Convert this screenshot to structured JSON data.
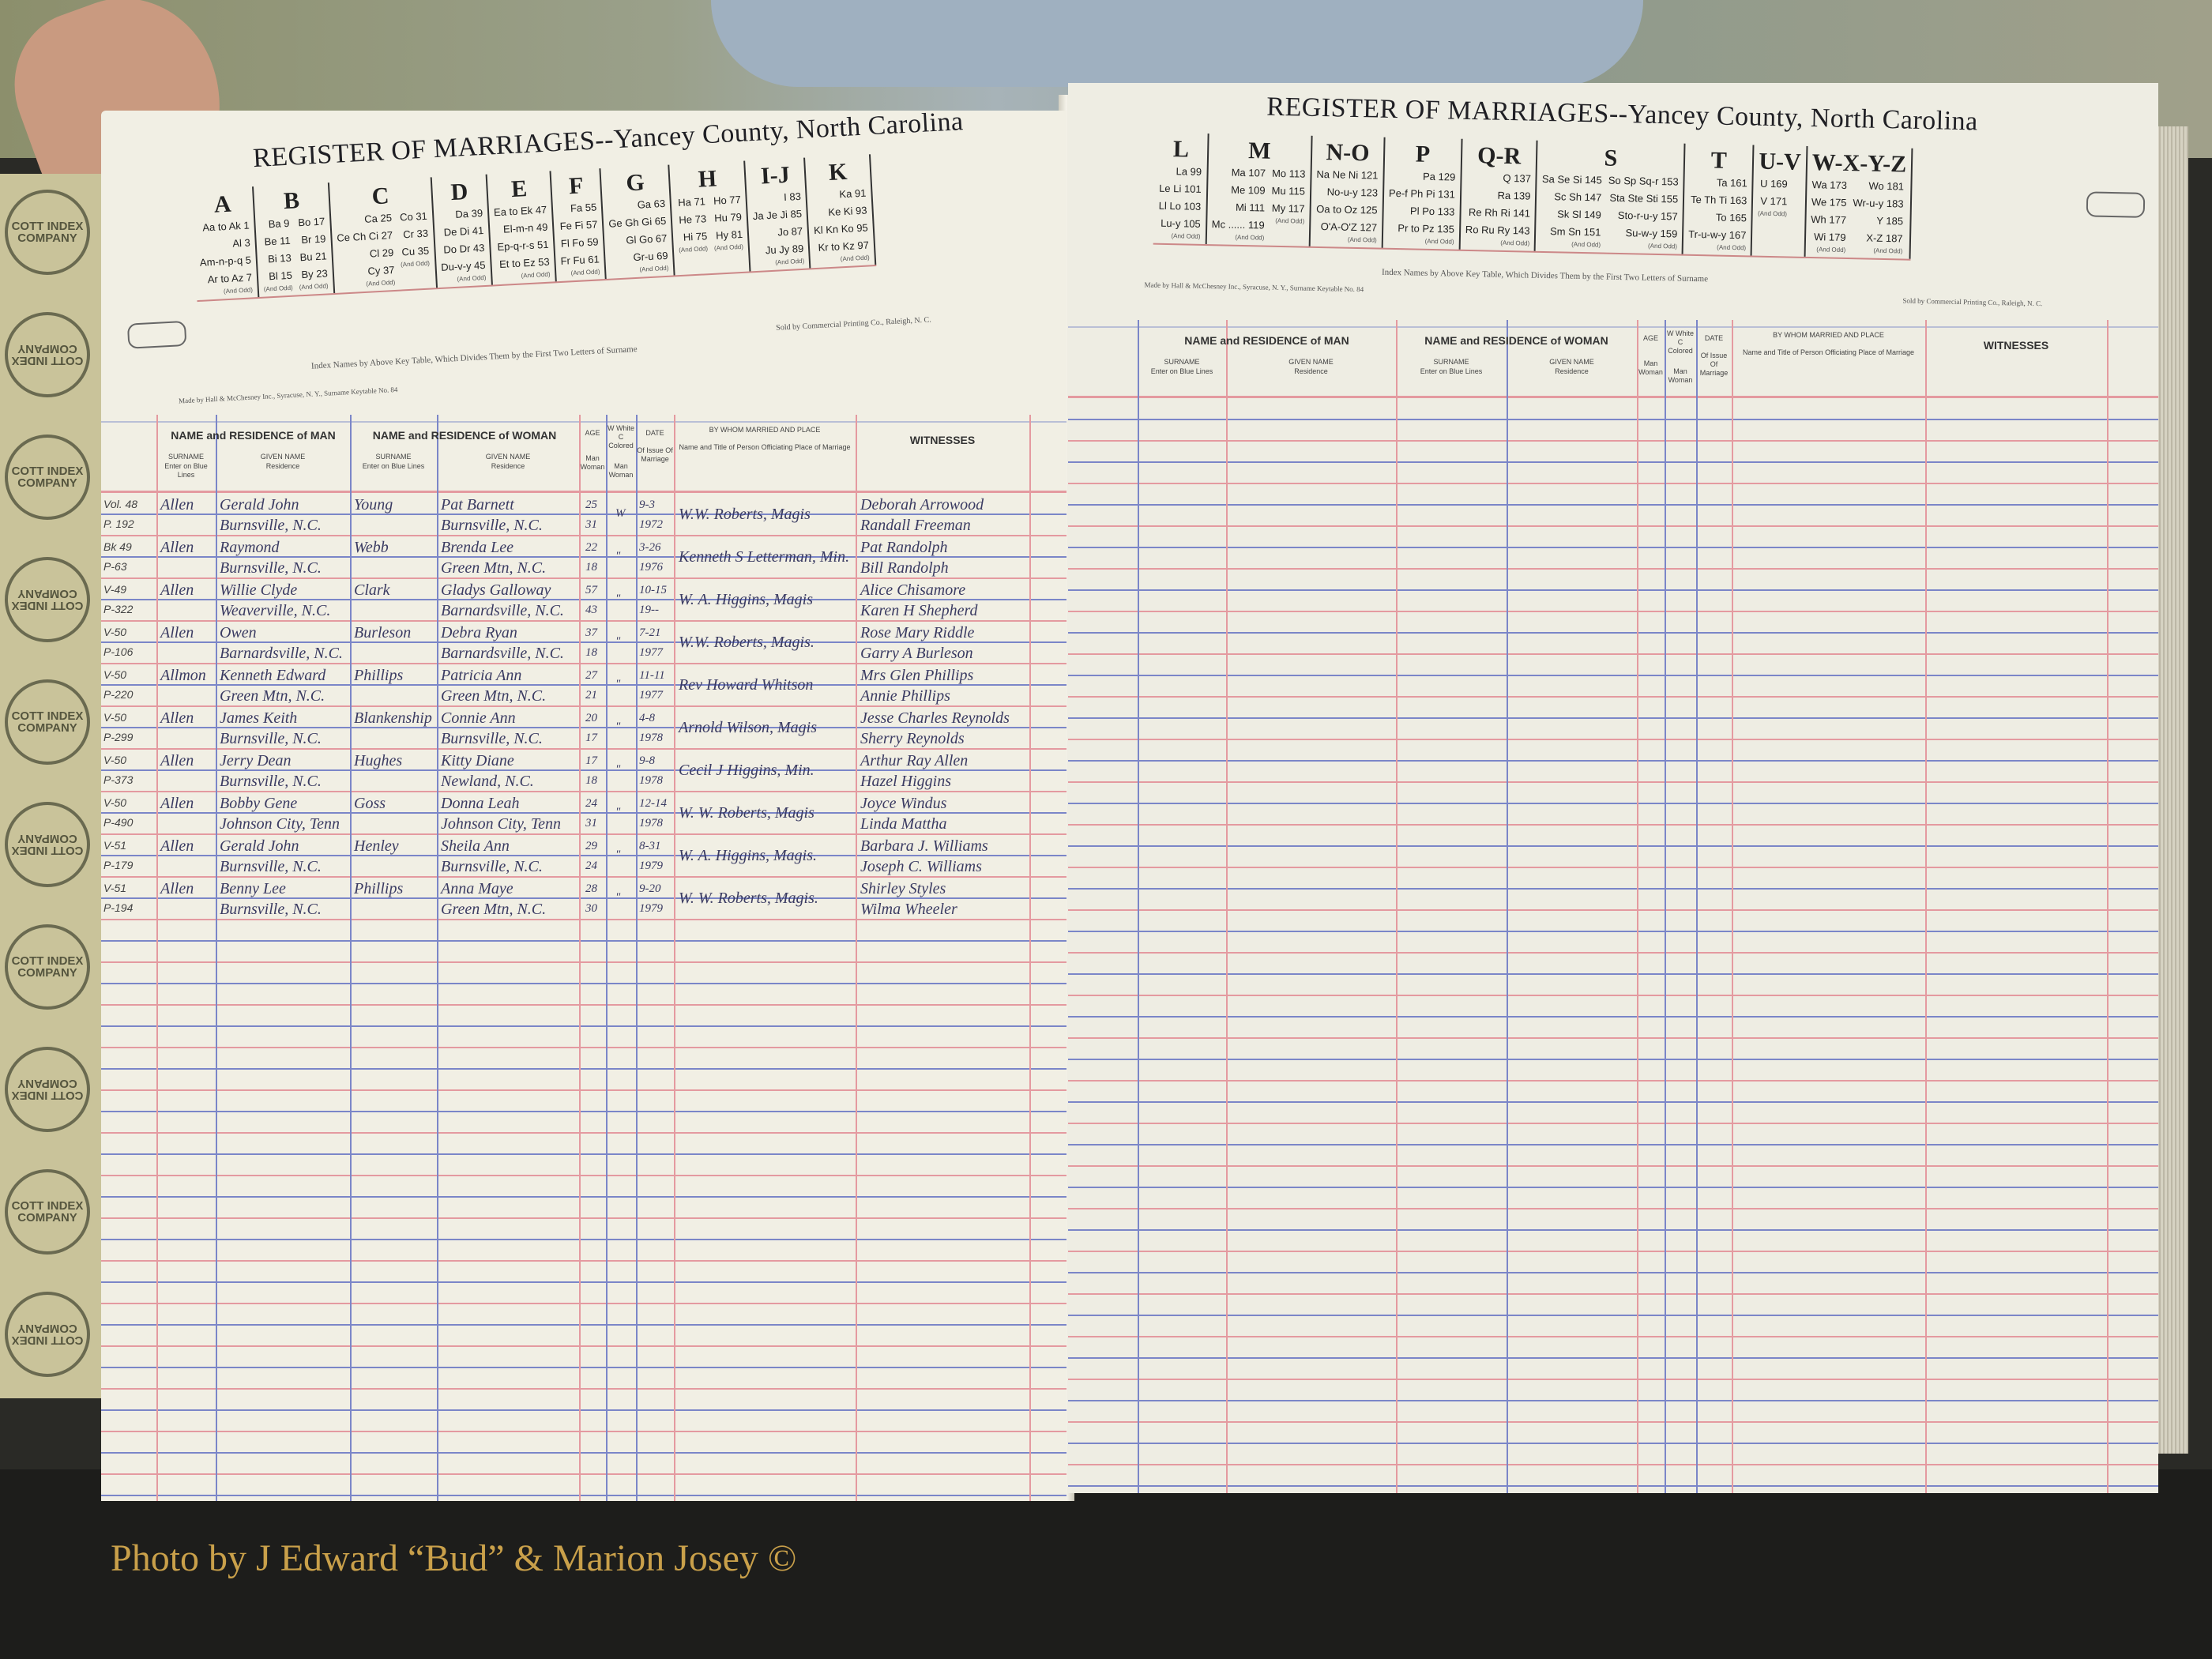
{
  "watermark": "Photo by J Edward “Bud” & Marion Josey ©",
  "seal_text": "COTT INDEX COMPANY",
  "left_page": {
    "title": "REGISTER OF MARRIAGES--Yancey County, North Carolina",
    "key_table": [
      {
        "letter": "A",
        "cols": [
          [
            "Aa to Ak 1",
            "Al 3",
            "Am-n-p-q 5",
            "Ar to Az 7"
          ]
        ]
      },
      {
        "letter": "B",
        "cols": [
          [
            "Ba 9",
            "Be 11",
            "Bi 13",
            "Bl 15"
          ],
          [
            "Bo 17",
            "Br 19",
            "Bu 21",
            "By 23"
          ]
        ]
      },
      {
        "letter": "C",
        "cols": [
          [
            "Ca 25",
            "Ce Ch Ci 27",
            "Cl 29",
            "Cy 37"
          ],
          [
            "Co 31",
            "Cr 33",
            "Cu 35"
          ]
        ]
      },
      {
        "letter": "D",
        "cols": [
          [
            "Da 39",
            "De Di 41",
            "Do Dr 43",
            "Du-v-y 45"
          ]
        ]
      },
      {
        "letter": "E",
        "cols": [
          [
            "Ea to Ek 47",
            "El-m-n 49",
            "Ep-q-r-s 51",
            "Et to Ez 53"
          ]
        ]
      },
      {
        "letter": "F",
        "cols": [
          [
            "Fa 55",
            "Fe Fi 57",
            "Fl Fo 59",
            "Fr Fu 61"
          ]
        ]
      },
      {
        "letter": "G",
        "cols": [
          [
            "Ga 63",
            "Ge Gh Gi 65",
            "Gl Go 67",
            "Gr-u 69"
          ]
        ]
      },
      {
        "letter": "H",
        "cols": [
          [
            "Ha 71",
            "He 73",
            "Hi 75"
          ],
          [
            "Ho 77",
            "Hu 79",
            "Hy 81"
          ]
        ]
      },
      {
        "letter": "I-J",
        "cols": [
          [
            "I 83",
            "Ja Je Ji 85",
            "Jo 87",
            "Ju Jy 89"
          ]
        ]
      },
      {
        "letter": "K",
        "cols": [
          [
            "Ka 91",
            "Ke Ki 93",
            "Kl Kn Ko 95",
            "Kr to Kz 97"
          ]
        ]
      }
    ],
    "index_note": "Index Names by Above Key Table, Which Divides Them by the First Two Letters of Surname",
    "maker_note": "Made by Hall & McChesney Inc., Syracuse, N. Y., Surname Keytable No. 84",
    "seller_note": "Sold by Commercial Printing Co., Raleigh, N. C.",
    "entries": [
      {
        "ref": [
          "Vol. 48",
          "P. 192"
        ],
        "man_surname": "Allen",
        "man_given": "Gerald John",
        "man_residence": "Burnsville, N.C.",
        "woman_surname": "Young",
        "woman_given": "Pat Barnett",
        "woman_residence": "Burnsville, N.C.",
        "age_man": "25",
        "age_woman": "31",
        "race": "W",
        "date": [
          "9-3",
          "1972"
        ],
        "officiant": "W.W. Roberts, Magis",
        "witnesses": [
          "Deborah Arrowood",
          "Randall Freeman"
        ]
      },
      {
        "ref": [
          "Bk 49",
          "P-63"
        ],
        "man_surname": "Allen",
        "man_given": "Raymond",
        "man_residence": "Burnsville, N.C.",
        "woman_surname": "Webb",
        "woman_given": "Brenda Lee",
        "woman_residence": "Green Mtn, N.C.",
        "age_man": "22",
        "age_woman": "18",
        "race": "\"",
        "date": [
          "3-26",
          "1976"
        ],
        "officiant": "Kenneth S Letterman, Min.",
        "witnesses": [
          "Pat Randolph",
          "Bill Randolph"
        ]
      },
      {
        "ref": [
          "V-49",
          "P-322"
        ],
        "man_surname": "Allen",
        "man_given": "Willie Clyde",
        "man_residence": "Weaverville, N.C.",
        "woman_surname": "Clark",
        "woman_given": "Gladys Galloway",
        "woman_residence": "Barnardsville, N.C.",
        "age_man": "57",
        "age_woman": "43",
        "race": "\"",
        "date": [
          "10-15",
          "19--"
        ],
        "officiant": "W. A. Higgins, Magis",
        "witnesses": [
          "Alice Chisamore",
          "Karen H Shepherd"
        ]
      },
      {
        "ref": [
          "V-50",
          "P-106"
        ],
        "man_surname": "Allen",
        "man_given": "Owen",
        "man_residence": "Barnardsville, N.C.",
        "woman_surname": "Burleson",
        "woman_given": "Debra Ryan",
        "woman_residence": "Barnardsville, N.C.",
        "age_man": "37",
        "age_woman": "18",
        "race": "\"",
        "date": [
          "7-21",
          "1977"
        ],
        "officiant": "W.W. Roberts, Magis.",
        "witnesses": [
          "Rose Mary Riddle",
          "Garry A Burleson"
        ]
      },
      {
        "ref": [
          "V-50",
          "P-220"
        ],
        "man_surname": "Allmon",
        "man_given": "Kenneth Edward",
        "man_residence": "Green Mtn, N.C.",
        "woman_surname": "Phillips",
        "woman_given": "Patricia Ann",
        "woman_residence": "Green Mtn, N.C.",
        "age_man": "27",
        "age_woman": "21",
        "race": "\"",
        "date": [
          "11-11",
          "1977"
        ],
        "officiant": "Rev Howard Whitson",
        "witnesses": [
          "Mrs Glen Phillips",
          "Annie Phillips"
        ]
      },
      {
        "ref": [
          "V-50",
          "P-299"
        ],
        "man_surname": "Allen",
        "man_given": "James Keith",
        "man_residence": "Burnsville, N.C.",
        "woman_surname": "Blankenship",
        "woman_given": "Connie Ann",
        "woman_residence": "Burnsville, N.C.",
        "age_man": "20",
        "age_woman": "17",
        "race": "\"",
        "date": [
          "4-8",
          "1978"
        ],
        "officiant": "Arnold Wilson, Magis",
        "witnesses": [
          "Jesse Charles Reynolds",
          "Sherry Reynolds"
        ]
      },
      {
        "ref": [
          "V-50",
          "P-373"
        ],
        "man_surname": "Allen",
        "man_given": "Jerry Dean",
        "man_residence": "Burnsville, N.C.",
        "woman_surname": "Hughes",
        "woman_given": "Kitty Diane",
        "woman_residence": "Newland, N.C.",
        "age_man": "17",
        "age_woman": "18",
        "race": "\"",
        "date": [
          "9-8",
          "1978"
        ],
        "officiant": "Cecil J Higgins, Min.",
        "witnesses": [
          "Arthur Ray Allen",
          "Hazel Higgins"
        ]
      },
      {
        "ref": [
          "V-50",
          "P-490"
        ],
        "man_surname": "Allen",
        "man_given": "Bobby Gene",
        "man_residence": "Johnson City, Tenn",
        "woman_surname": "Goss",
        "woman_given": "Donna Leah",
        "woman_residence": "Johnson City, Tenn",
        "age_man": "24",
        "age_woman": "31",
        "race": "\"",
        "date": [
          "12-14",
          "1978"
        ],
        "officiant": "W. W. Roberts, Magis",
        "witnesses": [
          "Joyce Windus",
          "Linda Mattha"
        ]
      },
      {
        "ref": [
          "V-51",
          "P-179"
        ],
        "man_surname": "Allen",
        "man_given": "Gerald John",
        "man_residence": "Burnsville, N.C.",
        "woman_surname": "Henley",
        "woman_given": "Sheila Ann",
        "woman_residence": "Burnsville, N.C.",
        "age_man": "29",
        "age_woman": "24",
        "race": "\"",
        "date": [
          "8-31",
          "1979"
        ],
        "officiant": "W. A. Higgins, Magis.",
        "witnesses": [
          "Barbara J. Williams",
          "Joseph C. Williams"
        ]
      },
      {
        "ref": [
          "V-51",
          "P-194"
        ],
        "man_surname": "Allen",
        "man_given": "Benny Lee",
        "man_residence": "Burnsville, N.C.",
        "woman_surname": "Phillips",
        "woman_given": "Anna Maye",
        "woman_residence": "Green Mtn, N.C.",
        "age_man": "28",
        "age_woman": "30",
        "race": "\"",
        "date": [
          "9-20",
          "1979"
        ],
        "officiant": "W. W. Roberts, Magis.",
        "witnesses": [
          "Shirley Styles",
          "Wilma Wheeler"
        ]
      }
    ]
  },
  "right_page": {
    "title": "REGISTER OF MARRIAGES--Yancey County, North Carolina",
    "key_table": [
      {
        "letter": "L",
        "cols": [
          [
            "La 99",
            "Le Li 101",
            "Ll Lo 103",
            "Lu-y 105"
          ]
        ]
      },
      {
        "letter": "M",
        "cols": [
          [
            "Ma 107",
            "Me 109",
            "Mi 111",
            "Mc ...... 119"
          ],
          [
            "Mo 113",
            "Mu 115",
            "My 117"
          ]
        ]
      },
      {
        "letter": "N-O",
        "cols": [
          [
            "Na Ne Ni 121",
            "No-u-y 123",
            "Oa to Oz 125",
            "O'A-O'Z 127"
          ]
        ]
      },
      {
        "letter": "P",
        "cols": [
          [
            "Pa 129",
            "Pe-f Ph Pi 131",
            "Pl Po 133",
            "Pr to Pz 135"
          ]
        ]
      },
      {
        "letter": "Q-R",
        "cols": [
          [
            "Q 137",
            "Ra 139",
            "Re Rh Ri 141",
            "Ro Ru Ry 143"
          ]
        ]
      },
      {
        "letter": "S",
        "cols": [
          [
            "Sa Se Si 145",
            "Sc Sh 147",
            "Sk Sl 149",
            "Sm Sn 151"
          ],
          [
            "So Sp Sq-r 153",
            "Sta Ste Sti 155",
            "Sto-r-u-y 157",
            "Su-w-y 159"
          ]
        ]
      },
      {
        "letter": "T",
        "cols": [
          [
            "Ta 161",
            "Te Th Ti 163",
            "To 165",
            "Tr-u-w-y 167"
          ]
        ]
      },
      {
        "letter": "U-V",
        "cols": [
          [
            "U 169",
            "V 171"
          ]
        ]
      },
      {
        "letter": "W-X-Y-Z",
        "cols": [
          [
            "Wa 173",
            "We 175",
            "Wh 177",
            "Wi 179"
          ],
          [
            "Wo 181",
            "Wr-u-y 183",
            "Y 185",
            "X-Z 187"
          ]
        ]
      }
    ],
    "index_note": "Index Names by Above Key Table, Which Divides Them by the First Two Letters of Surname",
    "maker_note": "Made by Hall & McChesney Inc., Syracuse, N. Y., Surname Keytable No. 84",
    "seller_note": "Sold by Commercial Printing Co., Raleigh, N. C."
  },
  "and_odd": "(And Odd)",
  "columns": {
    "man_header": "NAME and RESIDENCE of MAN",
    "woman_header": "NAME and RESIDENCE of WOMAN",
    "surname": "SURNAME",
    "surname_sub": "Enter on Blue Lines",
    "given": "GIVEN NAME",
    "given_sub": "Residence",
    "age": "AGE",
    "age_sub": "Man Woman",
    "race": "W White C Colored",
    "race_sub": "Man Woman",
    "date": "DATE",
    "date_sub": "Of Issue Of Marriage",
    "officiant": "BY WHOM MARRIED AND PLACE",
    "officiant_sub": "Name and Title of Person Officiating Place of Marriage",
    "witnesses": "WITNESSES"
  }
}
